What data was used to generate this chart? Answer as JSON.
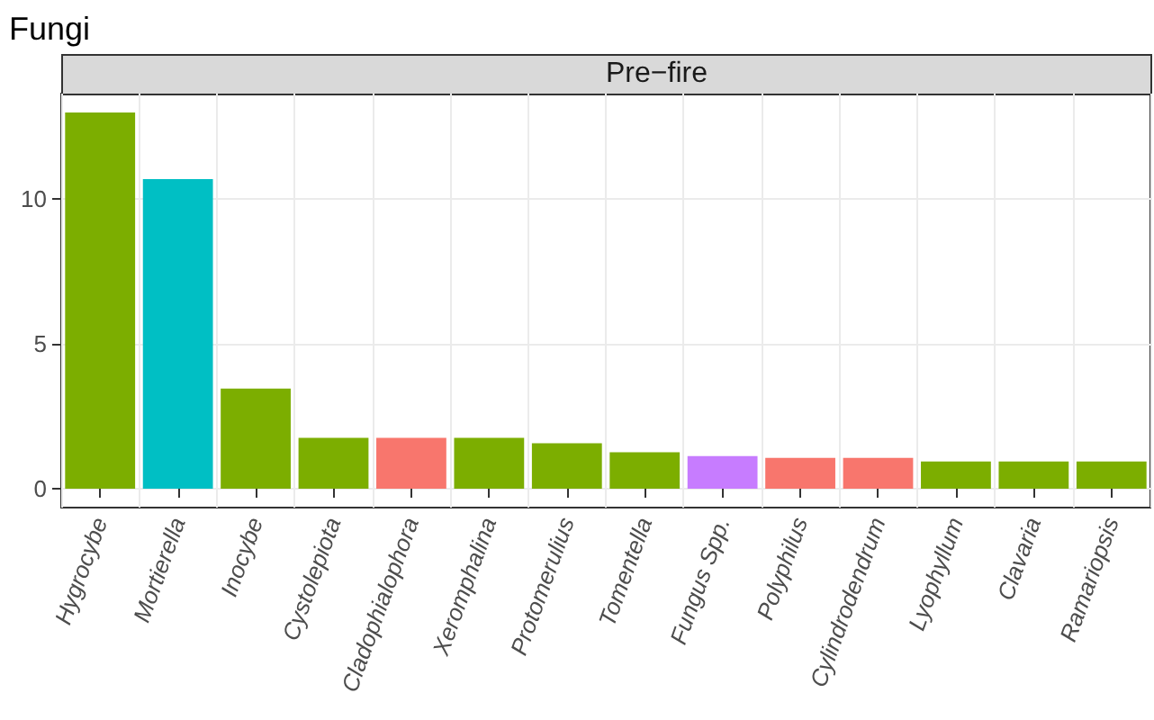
{
  "chart_data": {
    "type": "bar",
    "title": "Fungi",
    "subtitle": "Pre−fire",
    "categories": [
      "Hygrocybe",
      "Mortierella",
      "Inocybe",
      "Cystolepiota",
      "Cladophialophora",
      "Xeromphalina",
      "Protomerulius",
      "Tomentella",
      "Fungus Spp.",
      "Polyphilus",
      "Cylindrodendrum",
      "Lyophyllum",
      "Clavaria",
      "Ramariopsis"
    ],
    "values": [
      13.0,
      10.7,
      3.46,
      1.76,
      1.76,
      1.76,
      1.57,
      1.26,
      1.13,
      1.07,
      1.07,
      0.94,
      0.94,
      0.94
    ],
    "colors": [
      "#7cae00",
      "#00bfc4",
      "#7cae00",
      "#7cae00",
      "#f8766d",
      "#7cae00",
      "#7cae00",
      "#7cae00",
      "#c77cff",
      "#f8766d",
      "#f8766d",
      "#7cae00",
      "#7cae00",
      "#7cae00"
    ],
    "ylim": [
      -0.65,
      13.65
    ],
    "yticks": [
      0,
      5,
      10
    ],
    "grid": true
  }
}
